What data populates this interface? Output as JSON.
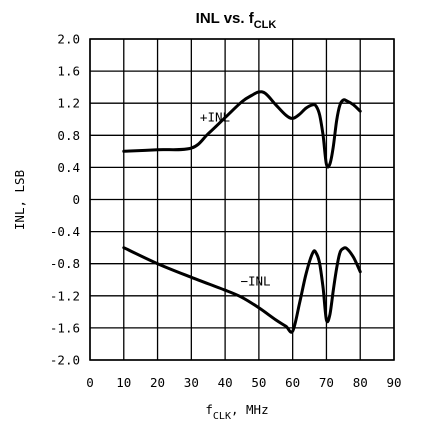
{
  "chart_data": {
    "type": "line",
    "title": "INL vs. f",
    "title_subscript": "CLK",
    "xlabel": "f",
    "xlabel_subscript": "CLK",
    "xlabel_suffix": ", MHz",
    "ylabel": "INL, LSB",
    "xlim": [
      0,
      90
    ],
    "ylim": [
      -2.0,
      2.0
    ],
    "xticks": [
      0,
      10,
      20,
      30,
      40,
      50,
      60,
      70,
      80,
      90
    ],
    "xtick_labels": [
      "0",
      "10",
      "20",
      "30",
      "40",
      "50",
      "60",
      "70",
      "80",
      "90"
    ],
    "yticks": [
      2.0,
      1.6,
      1.2,
      0.8,
      0.4,
      0,
      -0.4,
      -0.8,
      -1.2,
      -1.6,
      -2.0
    ],
    "ytick_labels": [
      "2.0",
      "1.6",
      "1.2",
      "0.8",
      "0.4",
      "0",
      "-0.4",
      "-0.8",
      "-1.2",
      "-1.6",
      "-2.0"
    ],
    "grid": true,
    "series": [
      {
        "name": "+INL",
        "x": [
          10,
          20,
          30,
          35,
          40,
          45,
          48,
          50,
          52,
          55,
          58,
          60,
          62,
          64,
          66,
          67,
          68,
          69,
          70,
          71,
          72,
          73,
          74,
          75,
          76,
          78,
          80
        ],
        "y": [
          0.6,
          0.62,
          0.64,
          0.82,
          1.02,
          1.22,
          1.3,
          1.34,
          1.32,
          1.18,
          1.05,
          1.01,
          1.06,
          1.14,
          1.18,
          1.16,
          1.05,
          0.8,
          0.44,
          0.44,
          0.65,
          0.98,
          1.18,
          1.24,
          1.23,
          1.18,
          1.1
        ]
      },
      {
        "name": "-INL",
        "x": [
          10,
          20,
          30,
          40,
          45,
          50,
          55,
          58,
          60,
          62,
          64,
          66,
          67,
          68,
          69,
          70,
          71,
          72,
          73,
          74,
          75,
          76,
          78,
          80
        ],
        "y": [
          -0.6,
          -0.8,
          -0.97,
          -1.13,
          -1.22,
          -1.35,
          -1.5,
          -1.58,
          -1.64,
          -1.3,
          -0.92,
          -0.66,
          -0.67,
          -0.8,
          -1.1,
          -1.5,
          -1.44,
          -1.14,
          -0.86,
          -0.66,
          -0.61,
          -0.61,
          -0.72,
          -0.9
        ]
      }
    ],
    "annotations": [
      {
        "text": "+INL",
        "x": 37,
        "y": 1.02
      },
      {
        "text": "−INL",
        "x": 49,
        "y": -1.02
      }
    ]
  }
}
